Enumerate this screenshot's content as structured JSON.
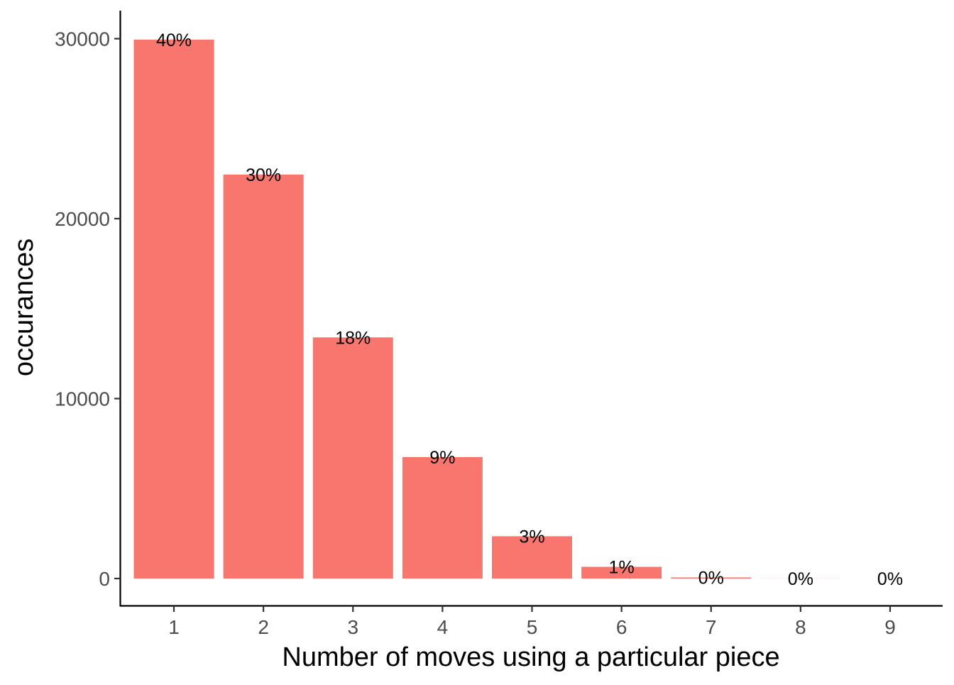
{
  "chart_data": {
    "type": "bar",
    "title": "",
    "xlabel": "Number of moves using a particular piece",
    "ylabel": "occurances",
    "categories": [
      "1",
      "2",
      "3",
      "4",
      "5",
      "6",
      "7",
      "8",
      "9"
    ],
    "values": [
      29950,
      22450,
      13400,
      6750,
      2350,
      650,
      60,
      5,
      1
    ],
    "data_labels": [
      "40%",
      "30%",
      "18%",
      "9%",
      "3%",
      "1%",
      "0%",
      "0%",
      "0%"
    ],
    "y_ticks": [
      0,
      10000,
      20000,
      30000
    ],
    "y_tick_labels": [
      "0",
      "10000",
      "20000",
      "30000"
    ],
    "ylim": [
      -1500,
      31500
    ],
    "bar_color": "#F8766D",
    "grid": false,
    "legend": "none"
  }
}
